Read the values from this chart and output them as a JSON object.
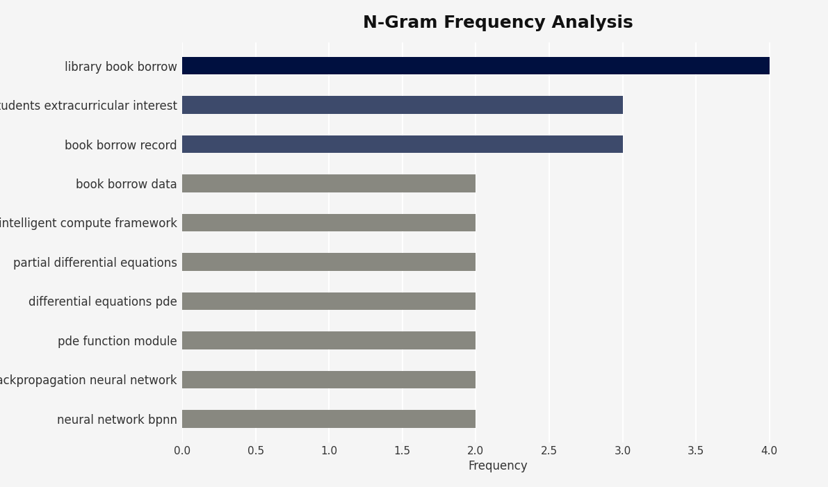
{
  "title": "N-Gram Frequency Analysis",
  "xlabel": "Frequency",
  "categories": [
    "neural network bpnn",
    "backpropagation neural network",
    "pde function module",
    "differential equations pde",
    "partial differential equations",
    "intelligent compute framework",
    "book borrow data",
    "book borrow record",
    "students extracurricular interest",
    "library book borrow"
  ],
  "values": [
    2,
    2,
    2,
    2,
    2,
    2,
    2,
    3,
    3,
    4
  ],
  "bar_colors": [
    "#888880",
    "#888880",
    "#888880",
    "#888880",
    "#888880",
    "#888880",
    "#888880",
    "#3d4a6b",
    "#3d4a6b",
    "#001040"
  ],
  "xlim": [
    0,
    4.3
  ],
  "xticks": [
    0.0,
    0.5,
    1.0,
    1.5,
    2.0,
    2.5,
    3.0,
    3.5,
    4.0
  ],
  "background_color": "#f5f5f5",
  "title_fontsize": 18,
  "label_fontsize": 12,
  "tick_fontsize": 11,
  "bar_height": 0.45
}
